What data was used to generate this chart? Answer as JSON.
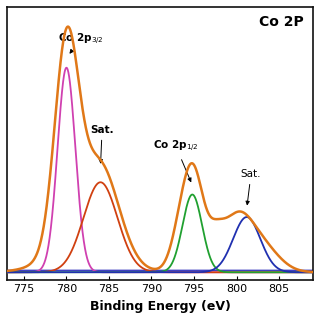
{
  "title": "Co 2P",
  "xlabel": "Binding Energy (eV)",
  "xlim": [
    773,
    809
  ],
  "ylim": [
    -0.03,
    1.08
  ],
  "xticks": [
    775,
    780,
    785,
    790,
    795,
    800,
    805
  ],
  "background_color": "#ffffff",
  "envelope_color": "#E07818",
  "peak1_color": "#D040B0",
  "peak2_color": "#D04010",
  "peak3_color": "#20A030",
  "peak4_color": "#2030B0",
  "baseline_color": "#4040C0",
  "frame_color": "#111111"
}
